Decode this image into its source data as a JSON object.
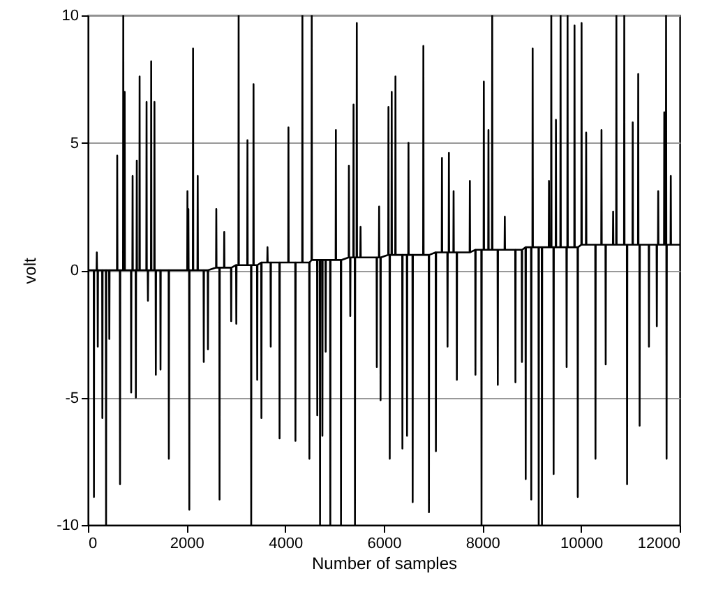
{
  "chart_data": {
    "type": "line",
    "xlabel": "Number of samples",
    "ylabel": "volt",
    "xlim": [
      0,
      12000
    ],
    "xticks": [
      0,
      2000,
      4000,
      6000,
      8000,
      10000,
      12000
    ],
    "ylim": [
      -10,
      10
    ],
    "yticks": [
      -10,
      -5,
      0,
      5,
      10
    ],
    "grid": "y",
    "line_style": "solid",
    "series": [
      {
        "color": "#000000",
        "x": [
          0,
          117,
          122,
          127,
          175,
          180,
          185,
          195,
          200,
          205,
          288,
          293,
          298,
          363,
          368,
          373,
          429,
          434,
          439,
          589,
          594,
          599,
          646,
          651,
          656,
          712,
          717,
          722,
          740,
          745,
          750,
          872,
          877,
          882,
          901,
          906,
          911,
          967,
          972,
          977,
          986,
          991,
          996,
          1043,
          1048,
          1053,
          1184,
          1189,
          1194,
          1212,
          1217,
          1222,
          1278,
          1283,
          1288,
          1344,
          1349,
          1354,
          1372,
          1377,
          1382,
          1467,
          1472,
          1477,
          1636,
          1641,
          1646,
          2013,
          2018,
          2023,
          2032,
          2037,
          2042,
          2051,
          2056,
          2061,
          2127,
          2132,
          2137,
          2221,
          2226,
          2231,
          2344,
          2349,
          2354,
          2429,
          2434,
          2439,
          2598,
          2603,
          2608,
          2664,
          2669,
          2674,
          2759,
          2764,
          2769,
          2900,
          2905,
          2910,
          3004,
          3009,
          3014,
          3051,
          3056,
          3061,
          3230,
          3235,
          3240,
          3306,
          3311,
          3316,
          3353,
          3358,
          3363,
          3428,
          3433,
          3438,
          3513,
          3518,
          3523,
          3636,
          3641,
          3646,
          3702,
          3707,
          3712,
          3881,
          3886,
          3891,
          4061,
          4066,
          4071,
          4203,
          4208,
          4213,
          4344,
          4349,
          4354,
          4486,
          4491,
          4496,
          4533,
          4538,
          4543,
          4646,
          4651,
          4656,
          4702,
          4707,
          4712,
          4750,
          4755,
          4760,
          4816,
          4821,
          4826,
          4910,
          4915,
          4920,
          5023,
          5028,
          5033,
          5127,
          5132,
          5137,
          5287,
          5292,
          5297,
          5315,
          5320,
          5325,
          5381,
          5386,
          5391,
          5410,
          5415,
          5420,
          5447,
          5452,
          5457,
          5523,
          5528,
          5533,
          5853,
          5858,
          5863,
          5900,
          5905,
          5910,
          5929,
          5934,
          5939,
          6089,
          6094,
          6099,
          6115,
          6120,
          6125,
          6155,
          6160,
          6165,
          6231,
          6236,
          6241,
          6372,
          6377,
          6382,
          6466,
          6471,
          6476,
          6495,
          6500,
          6505,
          6580,
          6585,
          6590,
          6797,
          6802,
          6807,
          6910,
          6915,
          6920,
          7051,
          7056,
          7061,
          7174,
          7179,
          7184,
          7287,
          7292,
          7297,
          7315,
          7320,
          7325,
          7410,
          7415,
          7420,
          7476,
          7481,
          7486,
          7740,
          7745,
          7750,
          7853,
          7858,
          7863,
          7976,
          7981,
          7986,
          8023,
          8028,
          8033,
          8117,
          8122,
          8127,
          8193,
          8198,
          8203,
          8306,
          8311,
          8316,
          8448,
          8453,
          8458,
          8664,
          8669,
          8674,
          8796,
          8801,
          8806,
          8872,
          8877,
          8882,
          8985,
          8990,
          8995,
          9013,
          9018,
          9023,
          9136,
          9141,
          9146,
          9202,
          9207,
          9212,
          9344,
          9349,
          9354,
          9391,
          9396,
          9401,
          9438,
          9443,
          9448,
          9485,
          9490,
          9495,
          9579,
          9584,
          9589,
          9702,
          9707,
          9712,
          9721,
          9726,
          9731,
          9862,
          9867,
          9872,
          9928,
          9933,
          9938,
          10005,
          10010,
          10015,
          10098,
          10103,
          10108,
          10287,
          10292,
          10297,
          10409,
          10414,
          10419,
          10494,
          10499,
          10504,
          10645,
          10650,
          10655,
          10711,
          10716,
          10721,
          10871,
          10876,
          10881,
          10928,
          10933,
          10938,
          11042,
          11047,
          11052,
          11154,
          11159,
          11164,
          11182,
          11187,
          11192,
          11371,
          11376,
          11381,
          11531,
          11536,
          11541,
          11559,
          11564,
          11569,
          11682,
          11687,
          11692,
          11719,
          11724,
          11729,
          11729,
          11734,
          11739,
          11814,
          11819,
          11824,
          12000
        ],
        "values": [
          0,
          0,
          -8.9,
          0,
          0,
          0.7,
          0,
          0,
          -3,
          0,
          0,
          -5.8,
          0,
          0,
          -10,
          0,
          0,
          -2.7,
          0,
          0,
          4.5,
          0,
          0,
          -8.4,
          0,
          0,
          10,
          0,
          0,
          7,
          0,
          0,
          -4.8,
          0,
          0,
          3.7,
          0,
          0,
          -5,
          0,
          0,
          4.3,
          0,
          0,
          7.6,
          0,
          0,
          6.6,
          0,
          0,
          -1.2,
          0,
          0,
          8.2,
          0,
          0,
          6.6,
          0,
          0,
          -4.1,
          0,
          0,
          -3.9,
          0,
          0,
          -7.4,
          0,
          0,
          3.1,
          0,
          0,
          2.4,
          0,
          0,
          -9.4,
          0,
          0,
          8.7,
          0,
          0,
          3.7,
          0,
          0,
          -3.6,
          0,
          0,
          -3.1,
          0,
          0.1,
          2.4,
          0.1,
          0.1,
          -9,
          0.1,
          0.1,
          1.5,
          0.1,
          0.1,
          -2,
          0.1,
          0.2,
          -2.1,
          0.2,
          0.2,
          10,
          0.2,
          0.2,
          5.1,
          0.2,
          0.2,
          -10,
          0.2,
          0.2,
          7.3,
          0.2,
          0.2,
          -4.3,
          0.2,
          0.3,
          -5.8,
          0.3,
          0.3,
          0.9,
          0.3,
          0.3,
          -3,
          0.3,
          0.3,
          -6.6,
          0.3,
          0.3,
          5.6,
          0.3,
          0.3,
          -6.7,
          0.3,
          0.3,
          10,
          0.3,
          0.3,
          -7.4,
          0.3,
          0.4,
          10,
          0.4,
          0.4,
          -5.7,
          0.4,
          0.4,
          -10,
          0.4,
          0.4,
          -6.5,
          0.4,
          0.4,
          -3.2,
          0.4,
          0.4,
          -10,
          0.4,
          0.4,
          5.5,
          0.4,
          0.4,
          -10,
          0.4,
          0.5,
          4.1,
          0.5,
          0.5,
          -1.8,
          0.5,
          0.5,
          6.5,
          0.5,
          0.5,
          -10,
          0.5,
          0.5,
          9.7,
          0.5,
          0.5,
          1.7,
          0.5,
          0.5,
          -3.8,
          0.5,
          0.5,
          2.5,
          0.5,
          0.5,
          -5.1,
          0.5,
          0.6,
          6.4,
          0.6,
          0.6,
          -7.4,
          0.6,
          0.6,
          7,
          0.6,
          0.6,
          7.6,
          0.6,
          0.6,
          -7,
          0.6,
          0.6,
          -6.5,
          0.6,
          0.6,
          5,
          0.6,
          0.6,
          -9.1,
          0.6,
          0.6,
          8.8,
          0.6,
          0.6,
          -9.5,
          0.6,
          0.7,
          -7.1,
          0.7,
          0.7,
          4.4,
          0.7,
          0.7,
          -3,
          0.7,
          0.7,
          4.6,
          0.7,
          0.7,
          3.1,
          0.7,
          0.7,
          -4.3,
          0.7,
          0.7,
          3.5,
          0.7,
          0.8,
          -4.1,
          0.8,
          0.8,
          -10,
          0.8,
          0.8,
          7.4,
          0.8,
          0.8,
          5.5,
          0.8,
          0.8,
          10,
          0.8,
          0.8,
          -4.5,
          0.8,
          0.8,
          2.1,
          0.8,
          0.8,
          -4.4,
          0.8,
          0.8,
          -3.6,
          0.8,
          0.9,
          -8.2,
          0.9,
          0.9,
          -9,
          0.9,
          0.9,
          8.7,
          0.9,
          0.9,
          -10,
          0.9,
          0.9,
          -10,
          0.9,
          0.9,
          3.5,
          0.9,
          0.9,
          10,
          0.9,
          0.9,
          -8,
          0.9,
          0.9,
          5.9,
          0.9,
          0.9,
          10,
          0.9,
          0.9,
          -3.8,
          0.9,
          0.9,
          10,
          0.9,
          0.9,
          9.6,
          0.9,
          0.9,
          -8.9,
          0.9,
          1,
          9.7,
          1,
          1,
          5.4,
          1,
          1,
          -7.4,
          1,
          1,
          5.5,
          1,
          1,
          -3.7,
          1,
          1,
          2.3,
          1,
          1,
          10,
          1,
          1,
          10,
          1,
          1,
          -8.4,
          1,
          1,
          5.8,
          1,
          1,
          7.7,
          1,
          1,
          -6.1,
          1,
          1,
          -3,
          1,
          1,
          -2.2,
          1,
          1,
          3.1,
          1,
          1,
          6.2,
          1,
          1,
          10,
          1,
          1,
          -7.4,
          1,
          1,
          3.7,
          1,
          1
        ]
      }
    ]
  }
}
